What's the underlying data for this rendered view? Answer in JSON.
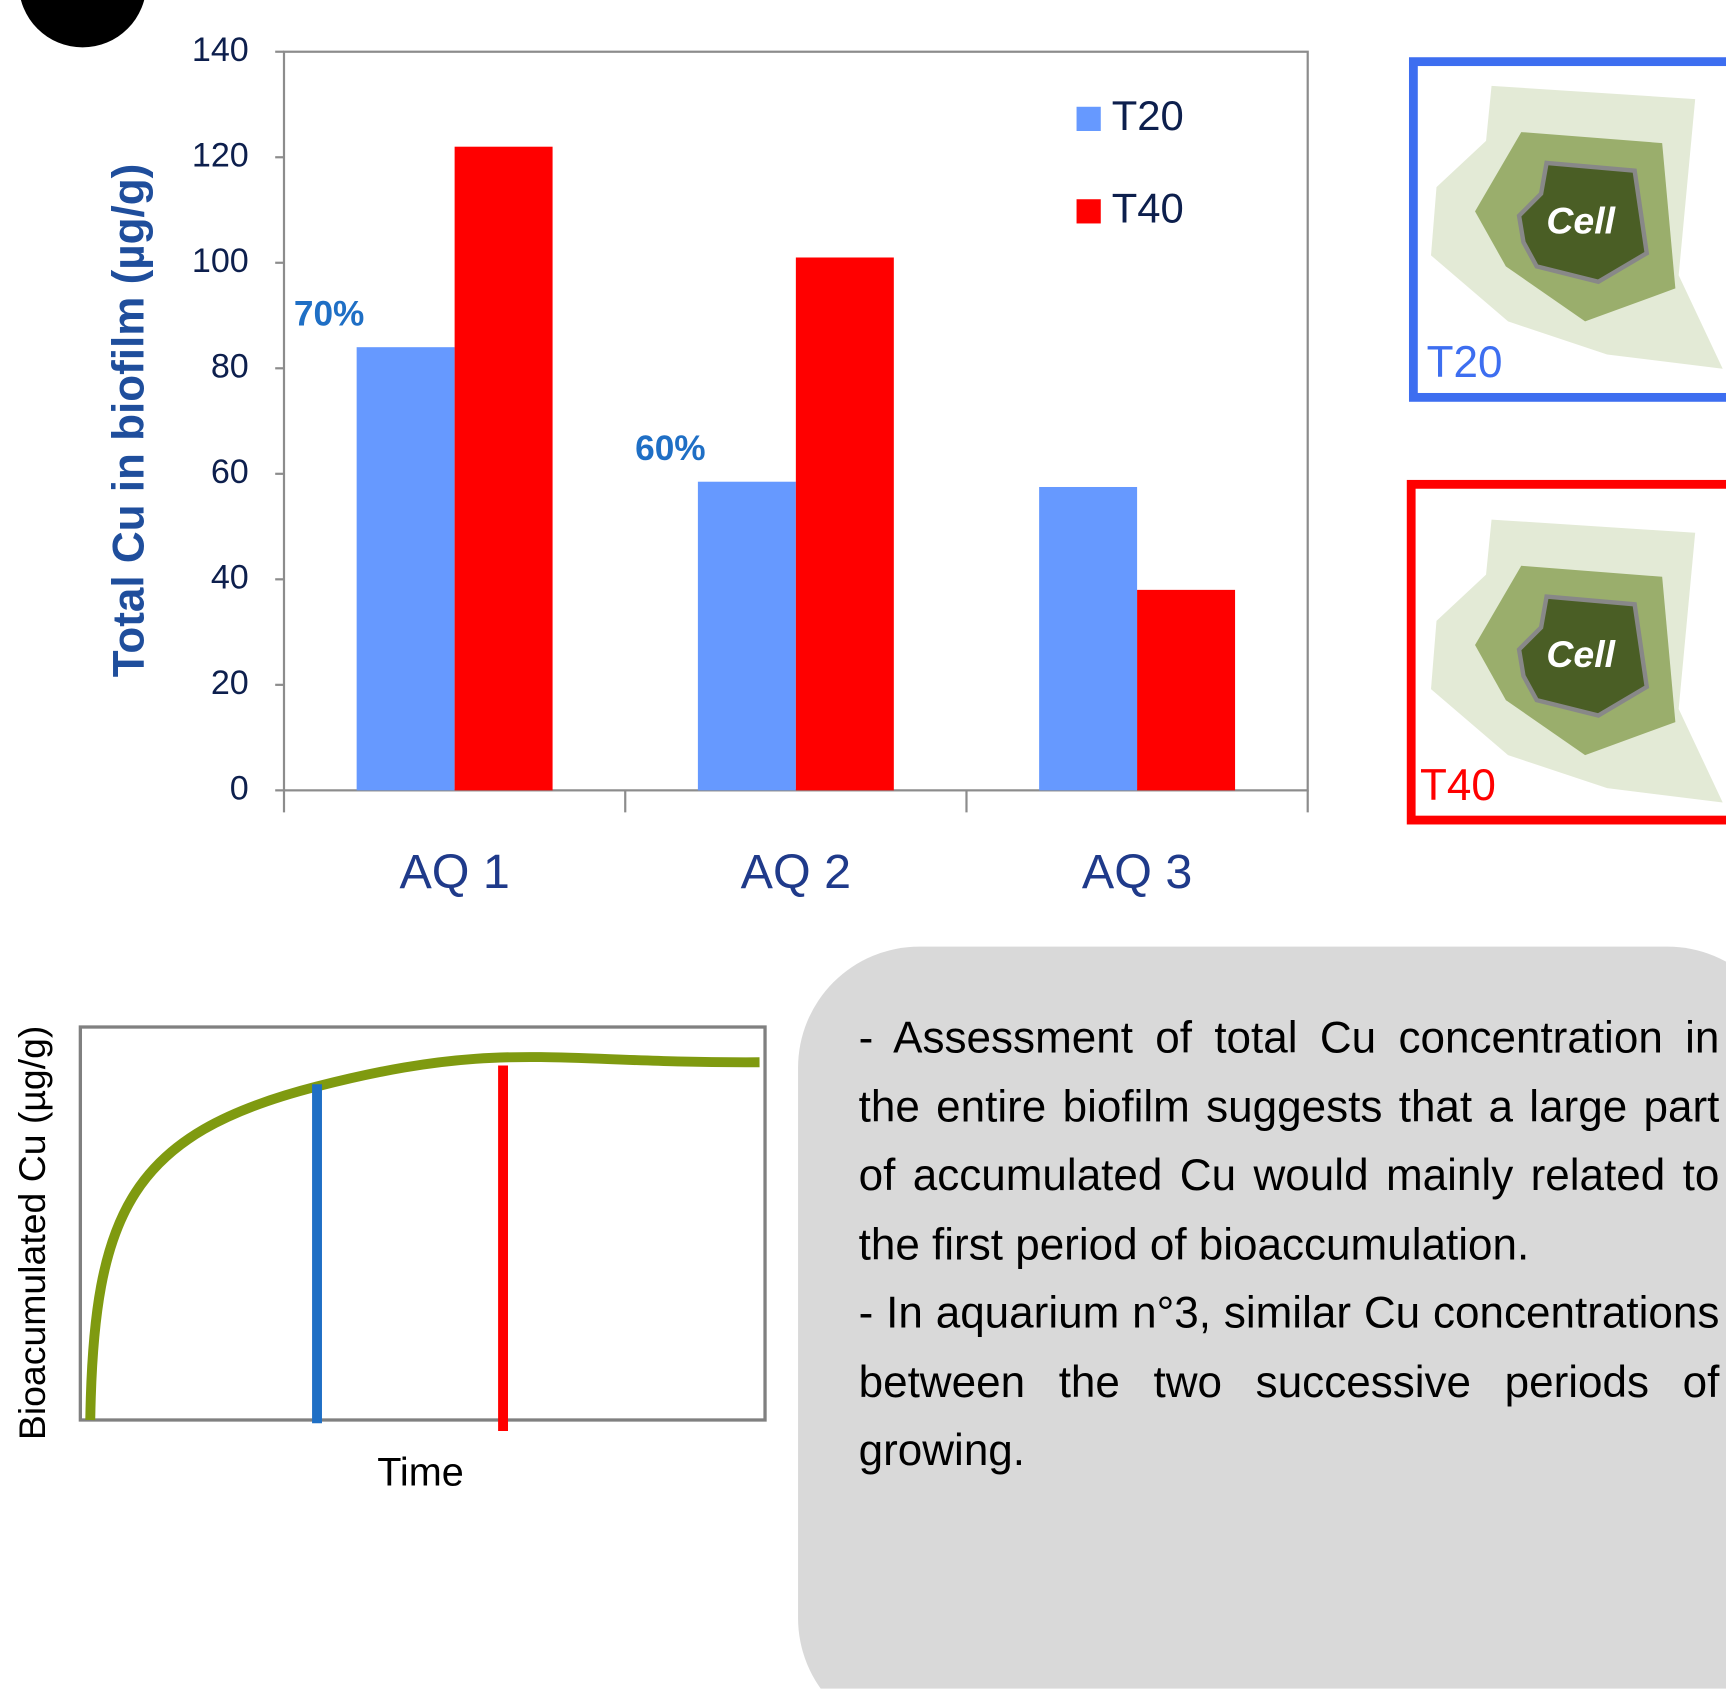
{
  "chart_data": {
    "type": "bar",
    "y_label": "Total Cu in biofilm (µg/g)",
    "categories": [
      "AQ 1",
      "AQ 2",
      "AQ 3"
    ],
    "series": [
      {
        "name": "T20",
        "color": "#6699ff",
        "values": [
          84,
          58.5,
          57.5
        ]
      },
      {
        "name": "T40",
        "color": "#ff0000",
        "values": [
          122,
          101,
          38
        ]
      }
    ],
    "annotations": [
      "70%",
      "60%"
    ],
    "ylim": [
      0,
      140
    ],
    "yticks": [
      0,
      20,
      40,
      60,
      80,
      100,
      120,
      140
    ]
  },
  "diagrams": [
    {
      "cell": "Cell",
      "label": "T20"
    },
    {
      "cell": "Cell",
      "label": "T40"
    }
  ],
  "schematic": {
    "y_label": "Bioacumulated Cu (µg/g)",
    "x_label": "Time"
  },
  "text": [
    "- Assessment of total Cu concentration in the entire biofilm suggests that a large part of accumulated Cu would mainly related to the first period of bioaccumulation.",
    "- In aquarium n°3, similar Cu concentrations between the two successive periods of growing."
  ]
}
